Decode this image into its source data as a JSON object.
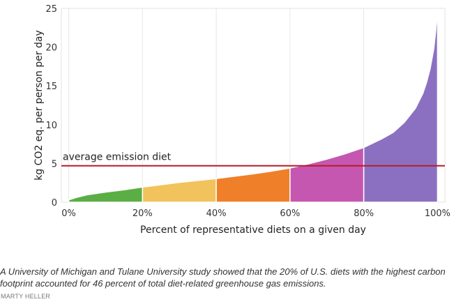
{
  "chart_data": {
    "type": "area",
    "xlabel": "Percent of representative diets on a given day",
    "ylabel": "kg CO2 eq. per person per day",
    "xlim": [
      -2,
      102
    ],
    "ylim": [
      0,
      25
    ],
    "x_ticks": [
      0,
      20,
      40,
      60,
      80,
      100
    ],
    "x_tick_labels": [
      "0%",
      "20%",
      "40%",
      "60%",
      "80%",
      "100%"
    ],
    "y_ticks": [
      0,
      5,
      10,
      15,
      20,
      25
    ],
    "y_tick_labels": [
      "0",
      "5",
      "10",
      "15",
      "20",
      "25"
    ],
    "grid": "vertical",
    "curve": {
      "x": [
        0,
        2,
        5,
        10,
        15,
        20,
        25,
        30,
        35,
        40,
        45,
        50,
        55,
        60,
        65,
        70,
        75,
        80,
        85,
        88,
        91,
        94,
        96,
        97,
        98,
        99,
        99.5,
        100
      ],
      "y": [
        0.3,
        0.6,
        0.95,
        1.3,
        1.6,
        1.95,
        2.25,
        2.55,
        2.8,
        3.05,
        3.35,
        3.65,
        4.0,
        4.4,
        4.95,
        5.55,
        6.25,
        7.05,
        8.2,
        9.0,
        10.3,
        12.1,
        14.0,
        15.4,
        17.2,
        19.8,
        22.0,
        25.0
      ]
    },
    "segments": [
      {
        "from": 0,
        "to": 20,
        "color": "#5bae45"
      },
      {
        "from": 20,
        "to": 40,
        "color": "#f2c35c"
      },
      {
        "from": 40,
        "to": 60,
        "color": "#f07f2a"
      },
      {
        "from": 60,
        "to": 80,
        "color": "#c557b0"
      },
      {
        "from": 80,
        "to": 100,
        "color": "#8b70c2"
      }
    ],
    "reference_line": {
      "y": 4.7,
      "label": "average emission diet",
      "color": "#b51c2a"
    }
  },
  "caption": "A University of Michigan and Tulane University study showed that the 20% of U.S. diets with the highest carbon footprint accounted for 46 percent of total diet-related greenhouse gas emissions.",
  "credit": "MARTY HELLER"
}
